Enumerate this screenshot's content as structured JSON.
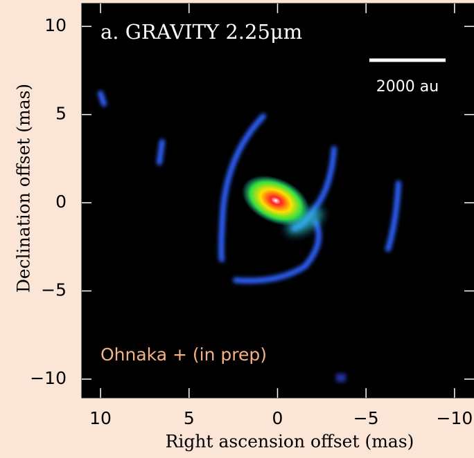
{
  "chart_data": {
    "type": "image",
    "title": "a. GRAVITY 2.25μm",
    "scale_bar_label": "2000 au",
    "annotation": "Ohnaka + (in prep)",
    "x_label": "Right ascension offset (mas)",
    "y_label": "Declination offset (mas)",
    "xlim": [
      11.06,
      -11.1
    ],
    "ylim": [
      -11.06,
      11.3
    ],
    "xticks": [
      10,
      5,
      0,
      {
        "value": -5,
        "label": "−5"
      },
      {
        "value": -10,
        "label": "−10"
      }
    ],
    "yticks": [
      10,
      5,
      0,
      {
        "value": -5,
        "label": "−5"
      },
      {
        "value": -10,
        "label": "−10"
      }
    ]
  }
}
